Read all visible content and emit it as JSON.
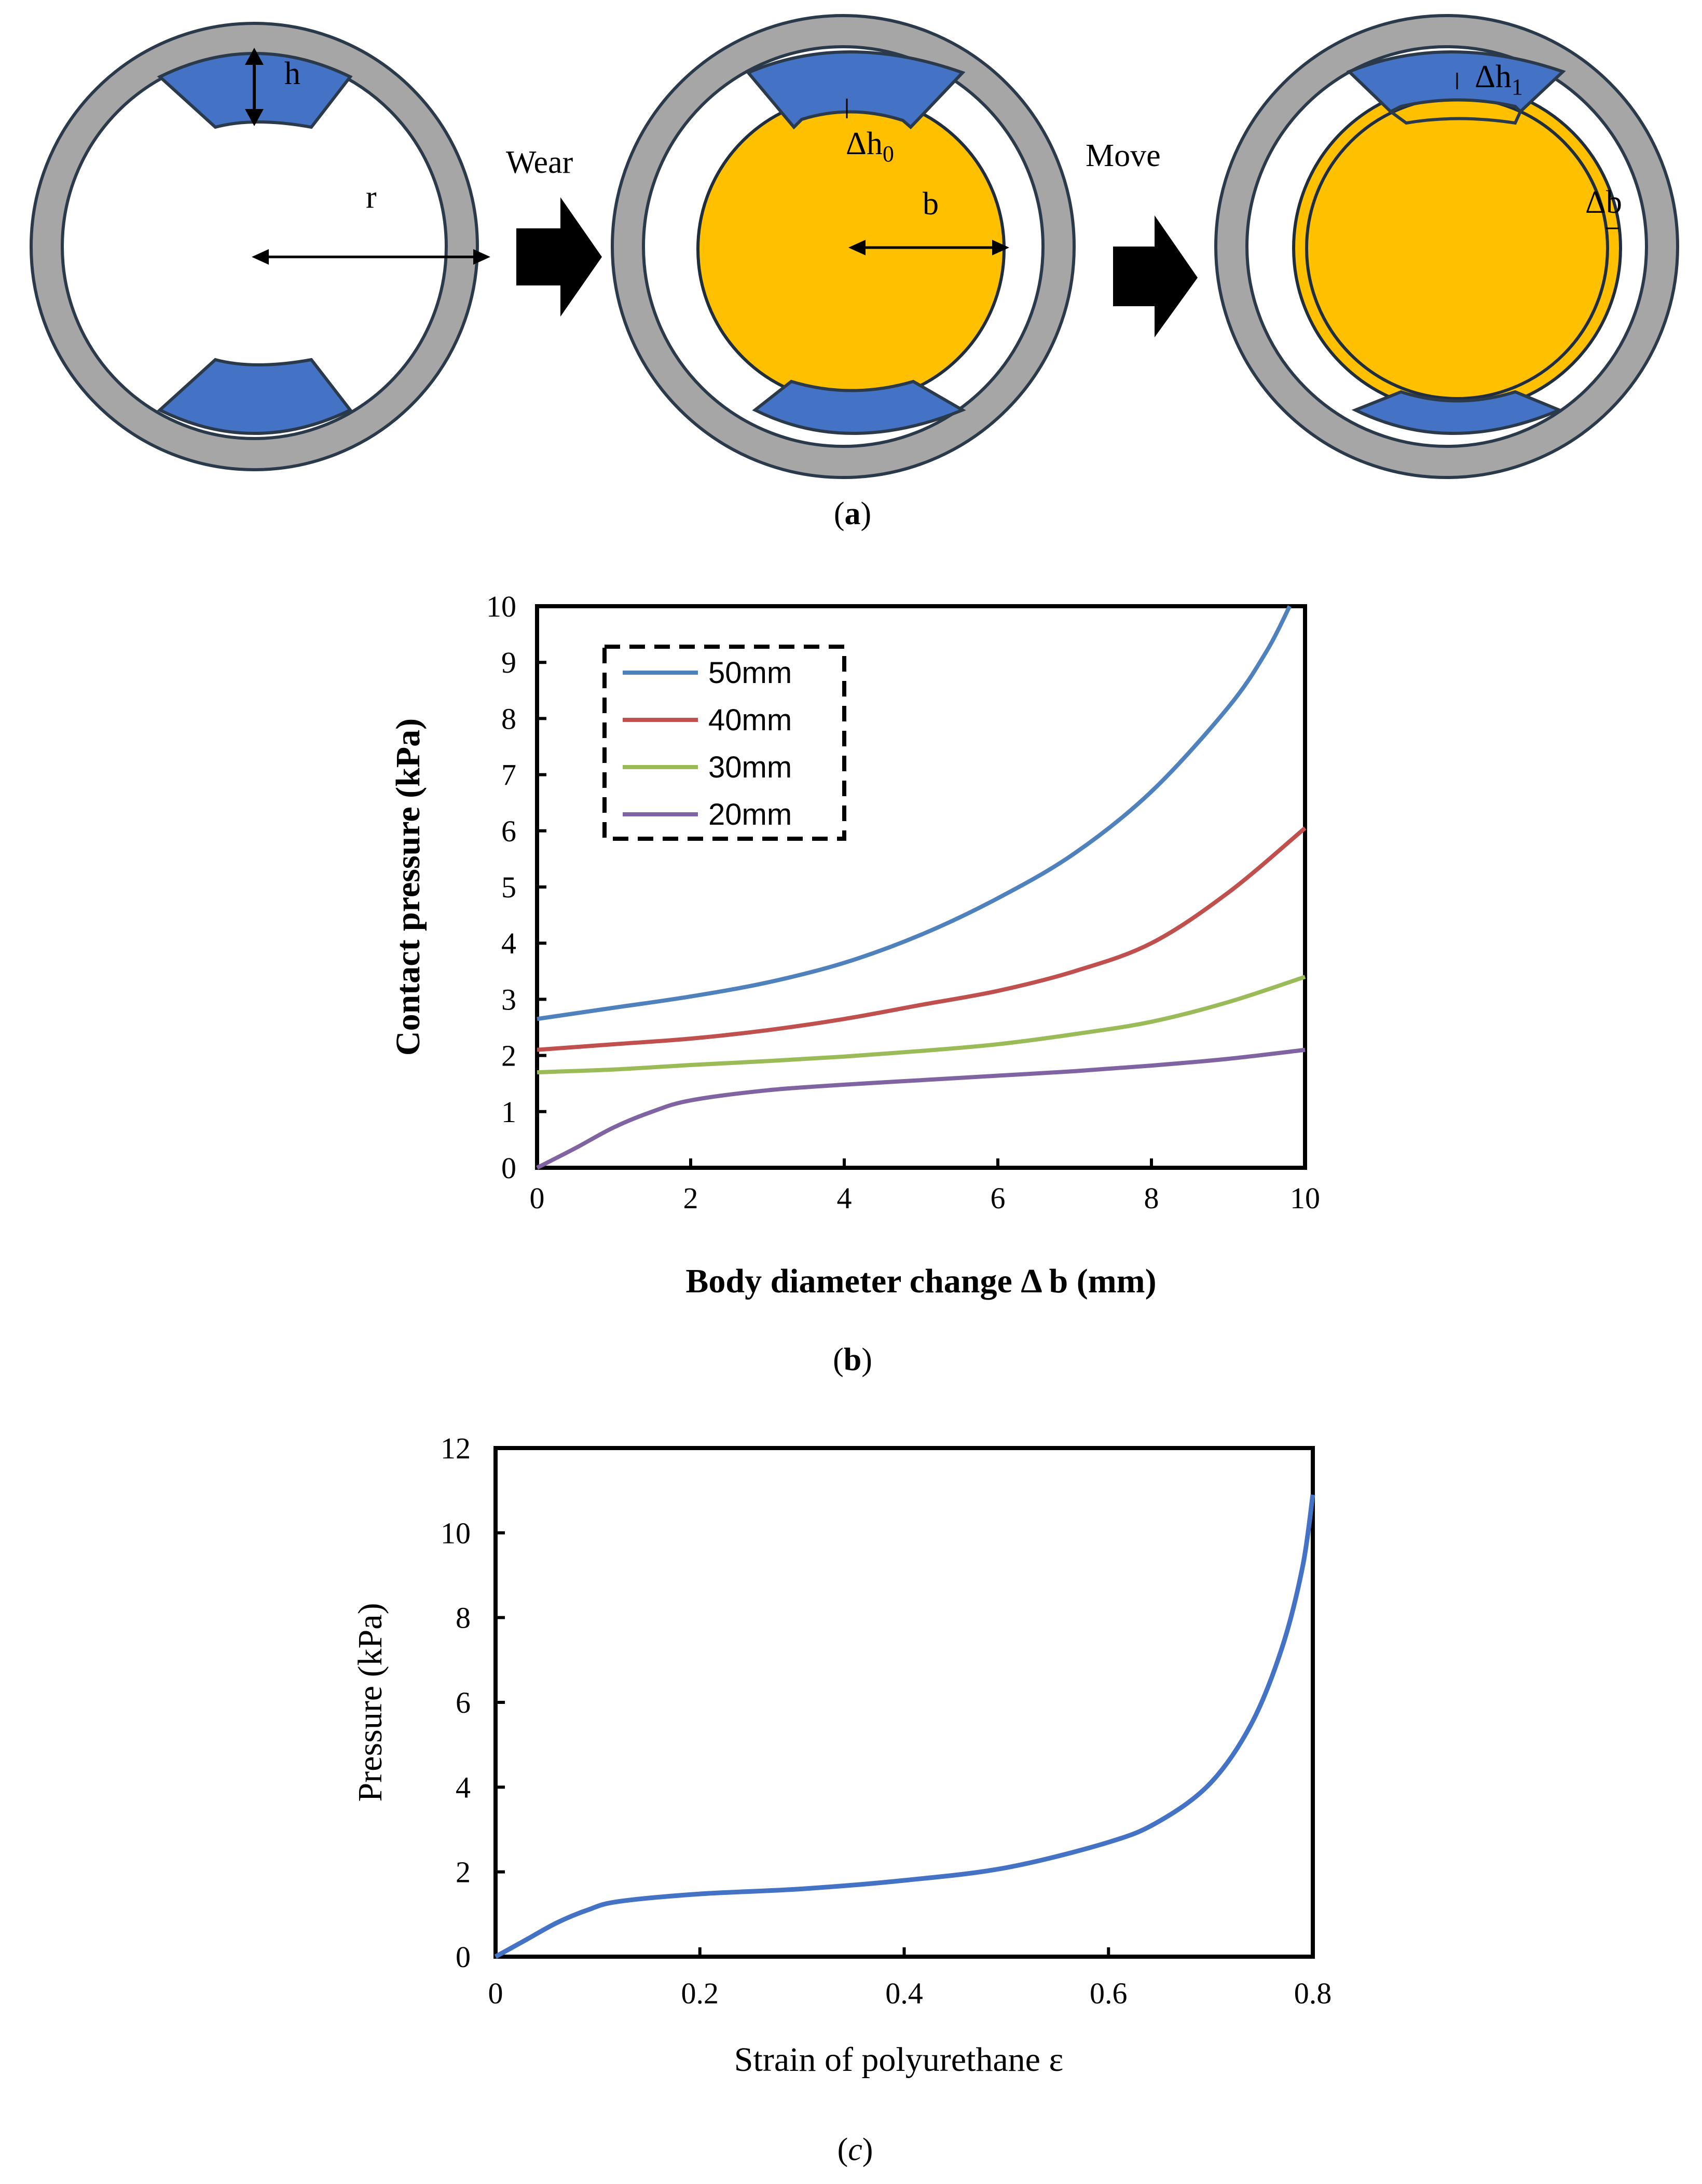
{
  "panel_a": {
    "caption": "a",
    "labels": {
      "h": "h",
      "r": "r",
      "wear": "Wear",
      "delta_h0": "Δh",
      "delta_h0_sub": "0",
      "b": "b",
      "move": "Move",
      "delta_h1": "Δh",
      "delta_h1_sub": "1",
      "delta_b": "Δb"
    },
    "colors": {
      "ring": "#a6a6a6",
      "pad": "#4472c4",
      "body": "#ffc000",
      "outline": "#1f2d3d",
      "arrow": "#000000"
    }
  },
  "chart_data": [
    {
      "id": "b",
      "type": "line",
      "caption": "b",
      "xlabel": "Body diameter change Δ b (mm)",
      "ylabel": "Contact pressure (kPa)",
      "xlim": [
        0,
        10
      ],
      "ylim": [
        0,
        10
      ],
      "xticks": [
        0,
        2,
        4,
        6,
        8,
        10
      ],
      "yticks": [
        0,
        1,
        2,
        3,
        4,
        5,
        6,
        7,
        8,
        9,
        10
      ],
      "legend_position": "top-left",
      "series": [
        {
          "name": "50mm",
          "color": "#4f81bd",
          "x": [
            0,
            1,
            2,
            3,
            4,
            5,
            6,
            7,
            8,
            9,
            9.5,
            9.8
          ],
          "y": [
            2.65,
            2.85,
            3.05,
            3.3,
            3.65,
            4.15,
            4.8,
            5.6,
            6.7,
            8.2,
            9.2,
            10.0
          ]
        },
        {
          "name": "40mm",
          "color": "#c0504d",
          "x": [
            0,
            1,
            2,
            3,
            4,
            5,
            6,
            7,
            8,
            9,
            10
          ],
          "y": [
            2.1,
            2.2,
            2.3,
            2.45,
            2.65,
            2.9,
            3.15,
            3.5,
            4.0,
            4.9,
            6.05
          ]
        },
        {
          "name": "30mm",
          "color": "#9bbb59",
          "x": [
            0,
            1,
            2,
            3,
            4,
            5,
            6,
            7,
            8,
            9,
            10
          ],
          "y": [
            1.7,
            1.75,
            1.83,
            1.9,
            1.98,
            2.08,
            2.2,
            2.38,
            2.6,
            2.95,
            3.4
          ]
        },
        {
          "name": "20mm",
          "color": "#8064a2",
          "x": [
            0,
            0.5,
            1,
            1.5,
            2,
            3,
            4,
            5,
            6,
            7,
            8,
            9,
            10
          ],
          "y": [
            0,
            0.35,
            0.72,
            1.0,
            1.2,
            1.38,
            1.48,
            1.56,
            1.64,
            1.72,
            1.82,
            1.94,
            2.1
          ]
        }
      ]
    },
    {
      "id": "c",
      "type": "line",
      "caption": "c",
      "xlabel": "Strain of polyurethane ε",
      "ylabel": "Pressure (kPa)",
      "xlim": [
        0,
        0.8
      ],
      "ylim": [
        0,
        12
      ],
      "xticks": [
        0,
        0.2,
        0.4,
        0.6,
        0.8
      ],
      "xtick_labels": [
        "0",
        "0.2",
        "0.4",
        "0.6",
        "0.8"
      ],
      "yticks": [
        0,
        2,
        4,
        6,
        8,
        10,
        12
      ],
      "series": [
        {
          "name": "Pressure",
          "color": "#4472c4",
          "x": [
            0,
            0.03,
            0.06,
            0.09,
            0.12,
            0.2,
            0.3,
            0.4,
            0.5,
            0.6,
            0.65,
            0.7,
            0.74,
            0.77,
            0.79,
            0.8
          ],
          "y": [
            0,
            0.4,
            0.8,
            1.1,
            1.3,
            1.48,
            1.6,
            1.8,
            2.1,
            2.7,
            3.2,
            4.1,
            5.5,
            7.3,
            9.2,
            10.9
          ]
        }
      ]
    }
  ]
}
